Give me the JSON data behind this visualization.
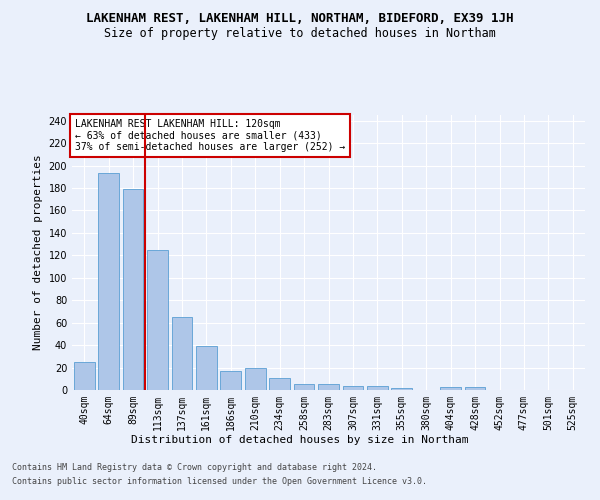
{
  "title": "LAKENHAM REST, LAKENHAM HILL, NORTHAM, BIDEFORD, EX39 1JH",
  "subtitle": "Size of property relative to detached houses in Northam",
  "xlabel": "Distribution of detached houses by size in Northam",
  "ylabel": "Number of detached properties",
  "categories": [
    "40sqm",
    "64sqm",
    "89sqm",
    "113sqm",
    "137sqm",
    "161sqm",
    "186sqm",
    "210sqm",
    "234sqm",
    "258sqm",
    "283sqm",
    "307sqm",
    "331sqm",
    "355sqm",
    "380sqm",
    "404sqm",
    "428sqm",
    "452sqm",
    "477sqm",
    "501sqm",
    "525sqm"
  ],
  "values": [
    25,
    193,
    179,
    125,
    65,
    39,
    17,
    20,
    11,
    5,
    5,
    4,
    4,
    2,
    0,
    3,
    3,
    0,
    0,
    0,
    0
  ],
  "bar_color": "#aec6e8",
  "bar_edge_color": "#5a9fd4",
  "vline_color": "#cc0000",
  "annotation_text": "LAKENHAM REST LAKENHAM HILL: 120sqm\n← 63% of detached houses are smaller (433)\n37% of semi-detached houses are larger (252) →",
  "annotation_box_color": "#ffffff",
  "annotation_box_edge": "#cc0000",
  "ylim": [
    0,
    245
  ],
  "yticks": [
    0,
    20,
    40,
    60,
    80,
    100,
    120,
    140,
    160,
    180,
    200,
    220,
    240
  ],
  "footer_line1": "Contains HM Land Registry data © Crown copyright and database right 2024.",
  "footer_line2": "Contains public sector information licensed under the Open Government Licence v3.0.",
  "bg_color": "#eaf0fb",
  "plot_bg_color": "#eaf0fb",
  "title_fontsize": 9,
  "subtitle_fontsize": 8.5,
  "axis_label_fontsize": 8,
  "tick_fontsize": 7,
  "annotation_fontsize": 7,
  "footer_fontsize": 6
}
